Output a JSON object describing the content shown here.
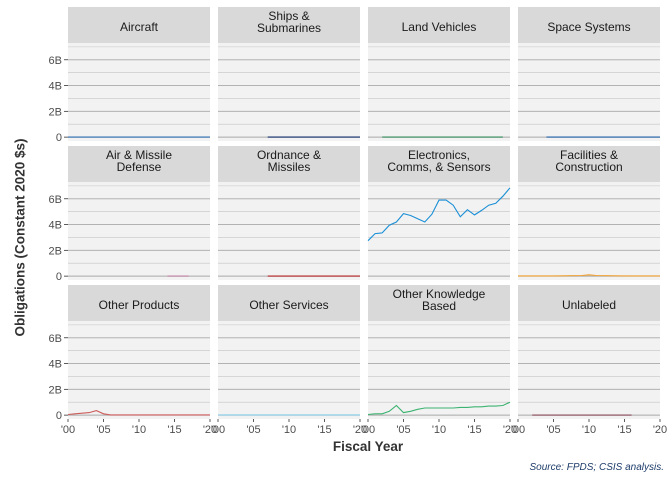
{
  "chart_data": {
    "type": "line",
    "facets": [
      {
        "title": "Aircraft",
        "color": "#2b6cb0",
        "x": [
          2000,
          2020
        ],
        "y": [
          0,
          0
        ]
      },
      {
        "title": "Ships &\nSubmarines",
        "color": "#0d2b6b",
        "x": [
          2007,
          2020
        ],
        "y": [
          0,
          0
        ]
      },
      {
        "title": "Land Vehicles",
        "color": "#2e8b57",
        "x": [
          2002,
          2019
        ],
        "y": [
          0,
          0
        ]
      },
      {
        "title": "Space Systems",
        "color": "#1f5fa8",
        "x": [
          2004,
          2020
        ],
        "y": [
          0,
          0
        ]
      },
      {
        "title": "Air & Missile\nDefense",
        "color": "#c080a0",
        "x": [
          2014,
          2017
        ],
        "y": [
          0,
          0
        ]
      },
      {
        "title": "Ordnance &\nMissiles",
        "color": "#b22222",
        "x": [
          2007,
          2020
        ],
        "y": [
          0,
          0
        ]
      },
      {
        "title": "Electronics,\nComms, & Sensors",
        "color": "#1a8fd6",
        "x": [
          2000,
          2001,
          2002,
          2003,
          2004,
          2005,
          2006,
          2007,
          2008,
          2009,
          2010,
          2011,
          2012,
          2013,
          2014,
          2015,
          2016,
          2017,
          2018,
          2019,
          2020
        ],
        "y": [
          2.75,
          3.3,
          3.35,
          3.95,
          4.2,
          4.85,
          4.7,
          4.45,
          4.2,
          4.8,
          5.9,
          5.9,
          5.5,
          4.6,
          5.15,
          4.75,
          5.1,
          5.5,
          5.65,
          6.2,
          6.85
        ]
      },
      {
        "title": "Facilities &\nConstruction",
        "color": "#f0a030",
        "x": [
          2000,
          2005,
          2009,
          2010,
          2011,
          2015,
          2020
        ],
        "y": [
          0.02,
          0.02,
          0.05,
          0.1,
          0.05,
          0.02,
          0.02
        ]
      },
      {
        "title": "Other Products",
        "color": "#cd5c5c",
        "x": [
          2000,
          2001,
          2002,
          2003,
          2004,
          2005,
          2006,
          2008,
          2010,
          2015,
          2020
        ],
        "y": [
          0.05,
          0.1,
          0.15,
          0.2,
          0.35,
          0.1,
          0.02,
          0.02,
          0.02,
          0.02,
          0.02
        ]
      },
      {
        "title": "Other Services",
        "color": "#87ceeb",
        "x": [
          2000,
          2020
        ],
        "y": [
          0.02,
          0.02
        ]
      },
      {
        "title": "Other Knowledge\nBased",
        "color": "#3cb371",
        "x": [
          2000,
          2001,
          2002,
          2003,
          2004,
          2005,
          2006,
          2007,
          2008,
          2009,
          2010,
          2011,
          2012,
          2013,
          2014,
          2015,
          2016,
          2017,
          2018,
          2019,
          2020
        ],
        "y": [
          0.05,
          0.1,
          0.1,
          0.3,
          0.75,
          0.2,
          0.3,
          0.45,
          0.55,
          0.55,
          0.55,
          0.55,
          0.55,
          0.6,
          0.6,
          0.65,
          0.65,
          0.7,
          0.7,
          0.75,
          1.0
        ]
      },
      {
        "title": "Unlabeled",
        "color": "#8b4a5a",
        "x": [
          2002,
          2016
        ],
        "y": [
          0,
          0
        ]
      }
    ],
    "xlabel": "Fiscal Year",
    "ylabel": "Obligations (Constant 2020 $s)",
    "xlim": [
      2000,
      2020
    ],
    "xticks": [
      2000,
      2005,
      2010,
      2015,
      2020
    ],
    "xtick_labels": [
      "'00",
      "'05",
      "'10",
      "'15",
      "'20"
    ],
    "ylim": [
      -0.3,
      7.3
    ],
    "yticks": [
      0,
      2,
      4,
      6
    ],
    "ytick_labels": [
      "0",
      "2B",
      "4B",
      "6B"
    ],
    "panel_background": "#f2f2f2",
    "strip_background": "#d9d9d9",
    "grid": true,
    "source": "Source: FPDS; CSIS analysis."
  }
}
